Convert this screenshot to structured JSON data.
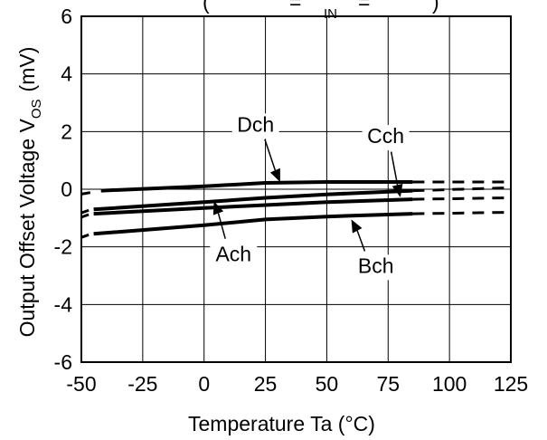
{
  "chart_data": {
    "type": "line",
    "title": {
      "visible_fragment_a": "(",
      "visible_fragment_b": "=",
      "subscript": "IN",
      "visible_fragment_c": "=",
      "visible_fragment_d": ")"
    },
    "xlabel": "Temperature Ta (°C)",
    "xlabel_main": "Temperature  Ta  (",
    "xlabel_unit": "°C)",
    "ylabel_main": "Output Offset Voltage  V",
    "ylabel_sub": "OS",
    "ylabel_unit": "(mV)",
    "xlim": [
      -50,
      125
    ],
    "ylim": [
      -6,
      6
    ],
    "x_ticks": [
      -50,
      -25,
      0,
      25,
      50,
      75,
      100,
      125
    ],
    "x_tick_labels": [
      "-50",
      "-25",
      "0",
      "25",
      "50",
      "75",
      "100",
      "125"
    ],
    "y_ticks": [
      -6,
      -4,
      -2,
      0,
      2,
      4,
      6
    ],
    "y_tick_labels": [
      "-6",
      "-4",
      "-2",
      "0",
      "2",
      "4",
      "6"
    ],
    "grid": true,
    "series": [
      {
        "name": "Dch",
        "solid": {
          "x": [
            -42,
            0,
            25,
            50,
            85
          ],
          "y": [
            -0.05,
            0.1,
            0.22,
            0.25,
            0.25
          ]
        },
        "dashed": {
          "x": [
            85,
            125
          ],
          "y": [
            0.25,
            0.25
          ]
        }
      },
      {
        "name": "Cch",
        "solid": {
          "x": [
            -45,
            0,
            25,
            50,
            85
          ],
          "y": [
            -0.7,
            -0.45,
            -0.3,
            -0.18,
            -0.05
          ]
        },
        "dashed": {
          "x": [
            85,
            125
          ],
          "y": [
            -0.05,
            0.05
          ]
        }
      },
      {
        "name": "Ach",
        "solid": {
          "x": [
            -45,
            0,
            25,
            50,
            85
          ],
          "y": [
            -0.85,
            -0.65,
            -0.55,
            -0.45,
            -0.35
          ]
        },
        "dashed": {
          "x": [
            85,
            125
          ],
          "y": [
            -0.35,
            -0.3
          ]
        }
      },
      {
        "name": "Bch",
        "solid": {
          "x": [
            -45,
            0,
            25,
            50,
            85
          ],
          "y": [
            -1.55,
            -1.25,
            -1.05,
            -0.95,
            -0.85
          ]
        },
        "dashed": {
          "x": [
            85,
            125
          ],
          "y": [
            -0.85,
            -0.8
          ]
        }
      }
    ],
    "annotations": [
      {
        "text": "Dch",
        "series": "Dch",
        "label": [
          21,
          2.0
        ],
        "arrow_to": [
          31,
          0.25
        ]
      },
      {
        "text": "Cch",
        "series": "Cch",
        "label": [
          74,
          1.6
        ],
        "arrow_to": [
          80,
          -0.28
        ]
      },
      {
        "text": "Ach",
        "series": "Ach",
        "label": [
          12,
          -2.5
        ],
        "arrow_to": [
          4,
          -0.42
        ]
      },
      {
        "text": "Bch",
        "series": "Bch",
        "label": [
          70,
          -2.9
        ],
        "arrow_to": [
          60,
          -1.05
        ]
      }
    ]
  }
}
